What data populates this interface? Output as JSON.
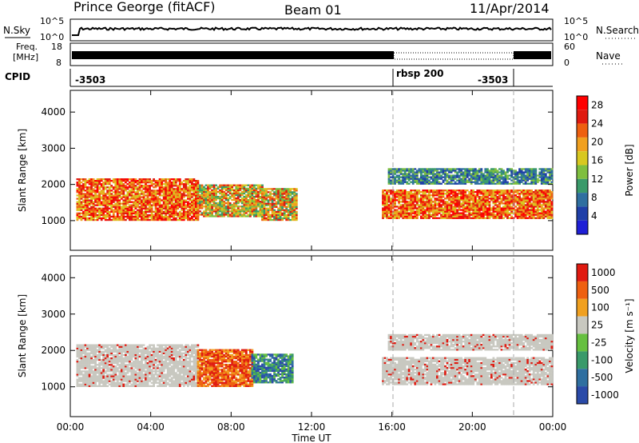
{
  "header": {
    "station": "Prince George (fitACF)",
    "beam": "Beam 01",
    "date": "11/Apr/2014"
  },
  "side_labels": {
    "nsky": "N.Sky",
    "nsearch": "N.Search",
    "freq_line1": "Freq.",
    "freq_line2": "[MHz]",
    "nave": "Nave",
    "cpid": "CPID"
  },
  "noise_axis": {
    "left_top": "10^5",
    "left_bottom": "10^0",
    "right_top": "10^5",
    "right_bottom": "10^0"
  },
  "freq_axis": {
    "left_top": "18",
    "left_bottom": "8",
    "right_top": "60",
    "right_bottom": "0"
  },
  "cpid_segments": [
    {
      "label": "-3503",
      "start_hour": 0,
      "end_hour": 16
    },
    {
      "label": "rbsp 200",
      "start_hour": 16,
      "end_hour": 22
    },
    {
      "label": "-3503",
      "start_hour": 22,
      "end_hour": 24
    }
  ],
  "chart_data": [
    {
      "type": "heatmap",
      "name": "power",
      "ylabel": "Slant Range [km]",
      "xlabel": "Time UT",
      "x_ticks": [
        "00:00",
        "04:00",
        "08:00",
        "12:00",
        "16:00",
        "20:00",
        "00:00"
      ],
      "y_ticks": [
        "1000",
        "2000",
        "3000",
        "4000"
      ],
      "xlim_hours": [
        0,
        24
      ],
      "ylim_km": [
        180,
        4600
      ],
      "colorbar": {
        "label": "Power [dB]",
        "ticks": [
          "4",
          "8",
          "12",
          "16",
          "20",
          "24",
          "28"
        ],
        "range": [
          0,
          30
        ],
        "colors": [
          "#1f1fd6",
          "#1f3fa8",
          "#2f6fa0",
          "#3a9a6a",
          "#7fbf3f",
          "#d8c820",
          "#f0a020",
          "#ee6010",
          "#e01a10",
          "#ff0000"
        ]
      },
      "bands": [
        {
          "t": [
            0.3,
            6.3
          ],
          "r": [
            1000,
            2150
          ],
          "level": "high"
        },
        {
          "t": [
            6.3,
            9.5
          ],
          "r": [
            1100,
            2000
          ],
          "level": "mid"
        },
        {
          "t": [
            9.5,
            11.2
          ],
          "r": [
            1000,
            1900
          ],
          "level": "mid"
        },
        {
          "t": [
            15.5,
            24
          ],
          "r": [
            1050,
            1850
          ],
          "level": "high"
        },
        {
          "t": [
            15.8,
            24
          ],
          "r": [
            2000,
            2450
          ],
          "level": "low"
        }
      ]
    },
    {
      "type": "heatmap",
      "name": "velocity",
      "ylabel": "Slant Range [km]",
      "xlabel": "Time UT",
      "x_ticks": [
        "00:00",
        "04:00",
        "08:00",
        "12:00",
        "16:00",
        "20:00",
        "00:00"
      ],
      "y_ticks": [
        "1000",
        "2000",
        "3000",
        "4000"
      ],
      "xlim_hours": [
        0,
        24
      ],
      "ylim_km": [
        180,
        4600
      ],
      "colorbar": {
        "label": "Velocity [m s⁻¹]",
        "ticks": [
          "1000",
          "500",
          "100",
          "25",
          "-25",
          "-100",
          "-500",
          "-1000"
        ],
        "colors": [
          "#2a4aa8",
          "#2f6fa0",
          "#3a9a6a",
          "#66c040",
          "#c8c8c0",
          "#f0a020",
          "#ee6010",
          "#e01a10"
        ]
      },
      "bands": [
        {
          "t": [
            0.3,
            6.3
          ],
          "r": [
            1000,
            2150
          ],
          "level": "zero"
        },
        {
          "t": [
            6.3,
            9.0
          ],
          "r": [
            1000,
            2000
          ],
          "level": "negative"
        },
        {
          "t": [
            9.0,
            11.0
          ],
          "r": [
            1100,
            1900
          ],
          "level": "positive"
        },
        {
          "t": [
            15.5,
            24
          ],
          "r": [
            1050,
            1800
          ],
          "level": "zero"
        },
        {
          "t": [
            15.8,
            24
          ],
          "r": [
            2000,
            2450
          ],
          "level": "zero"
        }
      ]
    }
  ]
}
